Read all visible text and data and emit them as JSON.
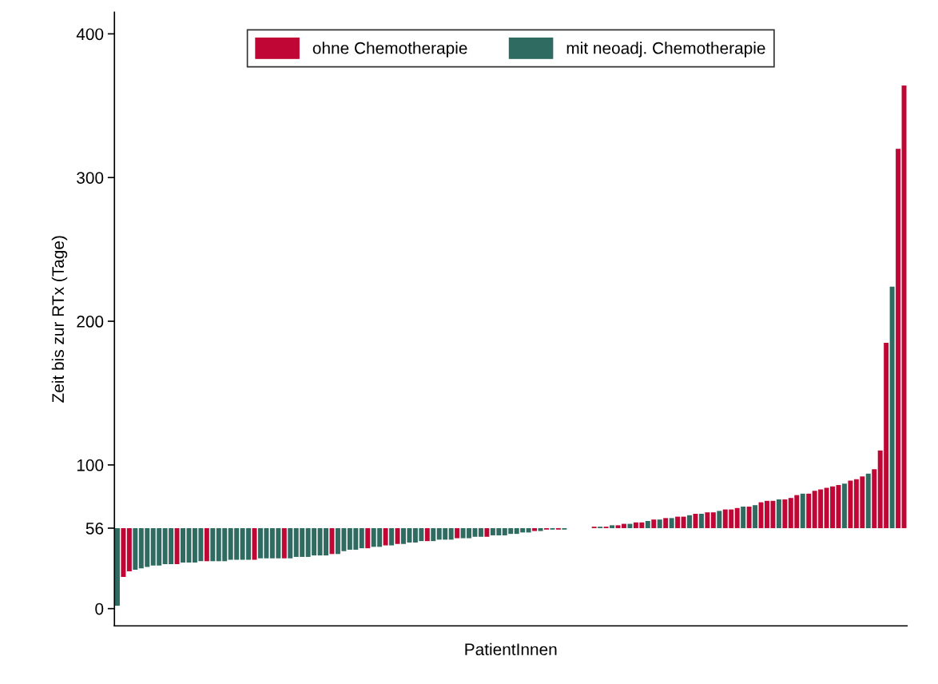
{
  "chart_data": {
    "type": "bar",
    "xlabel": "PatientInnen",
    "ylabel": "Zeit bis zur RTx (Tage)",
    "categories": [
      null,
      null,
      null,
      null,
      null,
      null,
      null,
      null,
      null,
      null,
      null,
      null,
      null,
      null,
      null,
      null,
      null,
      null,
      null,
      null,
      null,
      null,
      null,
      null,
      null,
      null,
      null,
      null,
      null,
      null,
      null,
      null,
      null,
      null,
      null,
      null,
      null,
      null,
      null,
      null,
      null,
      null,
      null,
      null,
      null,
      null,
      null,
      null,
      null,
      null,
      null,
      null,
      null,
      null,
      null,
      null,
      null,
      null,
      null,
      null,
      null,
      null,
      null,
      null,
      null,
      null,
      null,
      null,
      null,
      null,
      null,
      null,
      null,
      null,
      null,
      null,
      null,
      null,
      null,
      null,
      null,
      null,
      null,
      null,
      null,
      null,
      null,
      null,
      null,
      null,
      null,
      null,
      null,
      null,
      null,
      null,
      null,
      null,
      null,
      null,
      null,
      null,
      null,
      null,
      null,
      null,
      null,
      null,
      null,
      null,
      null,
      null,
      null,
      null,
      null,
      null,
      null,
      null,
      null,
      null,
      null,
      null,
      null,
      null,
      null,
      null,
      null,
      null,
      null,
      null,
      null,
      null,
      null
    ],
    "series": [
      {
        "name": "ohne Chemotherapie",
        "color": "#c00634",
        "base": [
          null,
          56,
          56,
          null,
          null,
          null,
          null,
          null,
          null,
          null,
          56,
          null,
          null,
          null,
          null,
          56,
          null,
          null,
          null,
          null,
          null,
          null,
          null,
          56,
          null,
          null,
          null,
          null,
          56,
          null,
          null,
          null,
          null,
          null,
          null,
          null,
          56,
          null,
          null,
          null,
          null,
          null,
          56,
          null,
          null,
          56,
          null,
          56,
          null,
          null,
          null,
          null,
          56,
          null,
          null,
          null,
          null,
          56,
          null,
          null,
          null,
          null,
          56,
          null,
          null,
          null,
          null,
          null,
          null,
          null,
          56,
          null,
          56,
          null,
          56,
          null,
          null,
          null,
          null,
          null,
          56,
          null,
          56,
          null,
          56,
          56,
          null,
          56,
          56,
          null,
          56,
          null,
          56,
          null,
          56,
          56,
          null,
          56,
          null,
          56,
          56,
          null,
          56,
          56,
          56,
          null,
          56,
          null,
          56,
          56,
          56,
          null,
          56,
          56,
          56,
          null,
          56,
          56,
          56,
          56,
          56,
          56,
          null,
          56,
          56,
          56,
          null,
          56,
          56,
          56,
          null,
          56,
          56
        ],
        "values": [
          null,
          -34,
          -30,
          null,
          null,
          null,
          null,
          null,
          null,
          null,
          -25,
          null,
          null,
          null,
          null,
          -23,
          null,
          null,
          null,
          null,
          null,
          null,
          null,
          -22,
          null,
          null,
          null,
          null,
          -21,
          null,
          null,
          null,
          null,
          null,
          null,
          null,
          -18,
          null,
          null,
          null,
          null,
          null,
          -14,
          null,
          null,
          -12,
          null,
          -11,
          null,
          null,
          null,
          null,
          -9,
          null,
          null,
          null,
          null,
          -7,
          null,
          null,
          null,
          null,
          -6,
          null,
          null,
          null,
          null,
          null,
          null,
          null,
          -2,
          null,
          -1,
          null,
          -1,
          null,
          null,
          null,
          null,
          null,
          1,
          null,
          1,
          null,
          2,
          3,
          null,
          4,
          4,
          null,
          6,
          null,
          7,
          null,
          8,
          8,
          null,
          10,
          null,
          11,
          11,
          null,
          13,
          13,
          14,
          null,
          15,
          null,
          18,
          19,
          19,
          null,
          20,
          21,
          23,
          null,
          24,
          26,
          27,
          28,
          29,
          30,
          null,
          33,
          34,
          36,
          null,
          41,
          54,
          129,
          null,
          264,
          308
        ]
      },
      {
        "name": "mit neoadj. Chemotherapie",
        "color": "#2f6b61",
        "base": [
          56,
          null,
          null,
          56,
          56,
          56,
          56,
          56,
          56,
          56,
          null,
          56,
          56,
          56,
          56,
          null,
          56,
          56,
          56,
          56,
          56,
          56,
          56,
          null,
          56,
          56,
          56,
          56,
          null,
          56,
          56,
          56,
          56,
          56,
          56,
          56,
          null,
          56,
          56,
          56,
          56,
          56,
          null,
          56,
          56,
          null,
          56,
          null,
          56,
          56,
          56,
          56,
          null,
          56,
          56,
          56,
          56,
          null,
          56,
          56,
          56,
          56,
          null,
          56,
          56,
          56,
          56,
          56,
          56,
          56,
          null,
          56,
          null,
          56,
          null,
          56,
          null,
          null,
          null,
          null,
          null,
          56,
          null,
          56,
          null,
          null,
          56,
          null,
          null,
          56,
          null,
          56,
          null,
          56,
          null,
          null,
          56,
          null,
          56,
          null,
          null,
          56,
          null,
          null,
          null,
          56,
          null,
          56,
          null,
          null,
          null,
          56,
          null,
          null,
          null,
          56,
          null,
          null,
          null,
          null,
          null,
          null,
          56,
          null,
          null,
          null,
          56,
          null,
          null,
          null,
          56,
          null,
          null
        ],
        "values": [
          -54,
          null,
          null,
          -29,
          -28,
          -27,
          -26,
          -26,
          -25,
          -25,
          null,
          -24,
          -24,
          -24,
          -23,
          null,
          -23,
          -23,
          -23,
          -22,
          -22,
          -22,
          -22,
          null,
          -21,
          -21,
          -21,
          -21,
          null,
          -21,
          -20,
          -20,
          -20,
          -19,
          -19,
          -19,
          null,
          -18,
          -16,
          -15,
          -15,
          -14,
          null,
          -13,
          -13,
          null,
          -12,
          null,
          -11,
          -10,
          -10,
          -9,
          null,
          -9,
          -8,
          -8,
          -8,
          null,
          -7,
          -7,
          -6,
          -6,
          null,
          -5,
          -5,
          -5,
          -4,
          -4,
          -3,
          -3,
          null,
          -2,
          null,
          -1,
          null,
          -1,
          null,
          null,
          null,
          null,
          null,
          1,
          null,
          2,
          null,
          null,
          3,
          null,
          null,
          5,
          null,
          6,
          null,
          7,
          null,
          null,
          9,
          null,
          10,
          null,
          null,
          12,
          null,
          null,
          null,
          15,
          null,
          16,
          null,
          null,
          null,
          20,
          null,
          null,
          null,
          24,
          null,
          null,
          null,
          null,
          null,
          null,
          31,
          null,
          null,
          null,
          38,
          null,
          null,
          null,
          168,
          null,
          null
        ]
      }
    ],
    "ylim": [
      -12,
      415
    ],
    "yticks": [
      0,
      56,
      100,
      200,
      300,
      400
    ],
    "grid": false,
    "legend": "top"
  }
}
